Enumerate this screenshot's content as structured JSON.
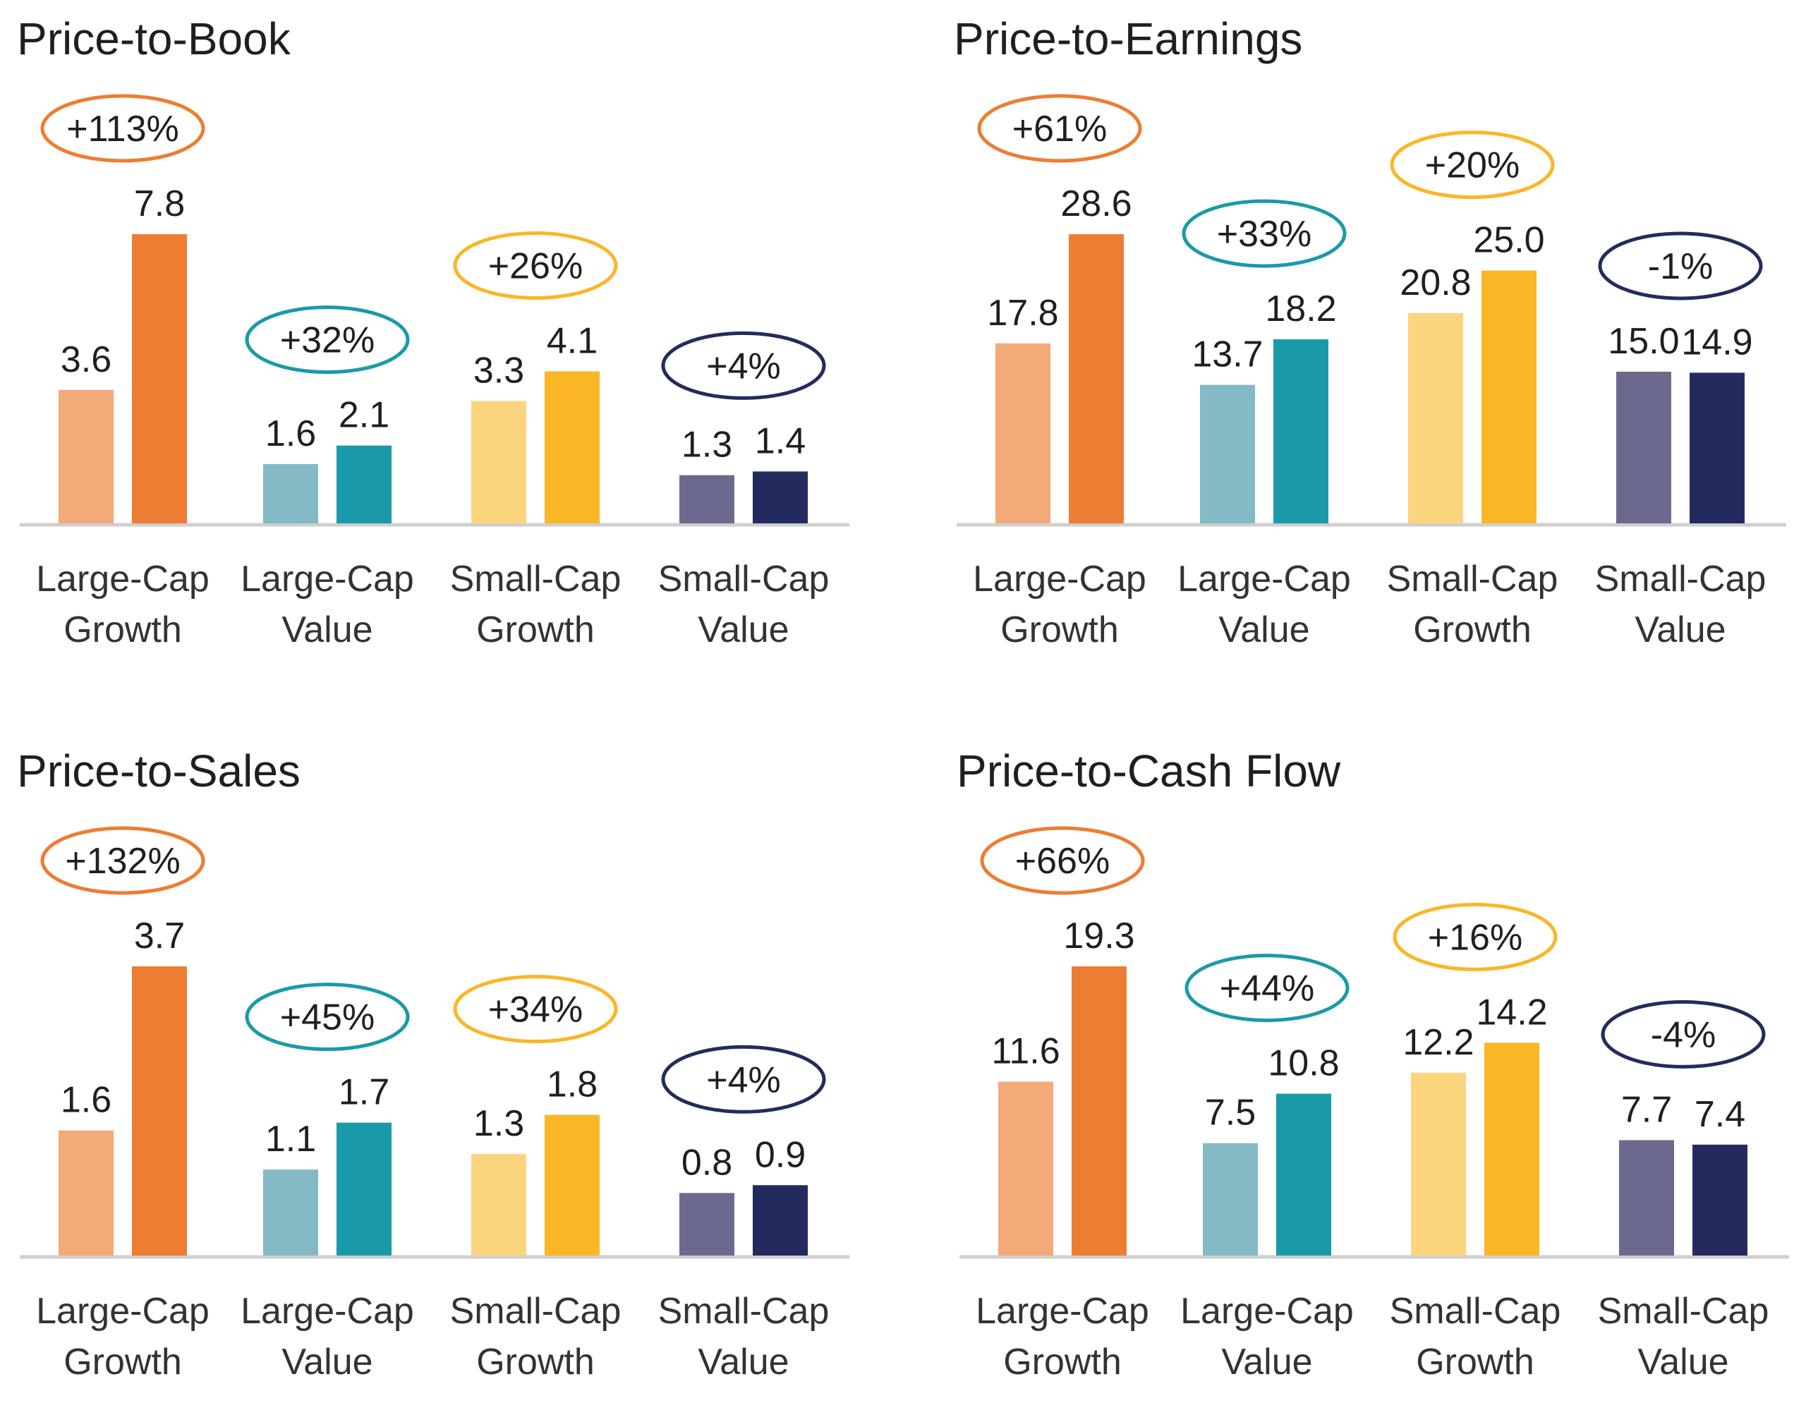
{
  "colors": {
    "lcg": [
      "#f4a978",
      "#ed7d32"
    ],
    "lcv": [
      "#84bac5",
      "#1a9aa8"
    ],
    "scg": [
      "#fdd47e",
      "#fbb626"
    ],
    "scv": [
      "#6b6a8e",
      "#232b5e"
    ],
    "baseline": "#cfcfcf"
  },
  "chart_data": [
    {
      "type": "bar",
      "title": "Price-to-Book",
      "categories": [
        [
          "Large-Cap",
          "Growth"
        ],
        [
          "Large-Cap",
          "Value"
        ],
        [
          "Small-Cap",
          "Growth"
        ],
        [
          "Small-Cap",
          "Value"
        ]
      ],
      "pairs": [
        [
          3.6,
          7.8
        ],
        [
          1.6,
          2.1
        ],
        [
          3.3,
          4.1
        ],
        [
          1.3,
          1.4
        ]
      ],
      "value_labels": [
        [
          "3.6",
          "7.8"
        ],
        [
          "1.6",
          "2.1"
        ],
        [
          "3.3",
          "4.1"
        ],
        [
          "1.3",
          "1.4"
        ]
      ],
      "changes": [
        "+113%",
        "+32%",
        "+26%",
        "+4%"
      ],
      "ylim": [
        0,
        7.8
      ]
    },
    {
      "type": "bar",
      "title": "Price-to-Earnings",
      "categories": [
        [
          "Large-Cap",
          "Growth"
        ],
        [
          "Large-Cap",
          "Value"
        ],
        [
          "Small-Cap",
          "Growth"
        ],
        [
          "Small-Cap",
          "Value"
        ]
      ],
      "pairs": [
        [
          17.8,
          28.6
        ],
        [
          13.7,
          18.2
        ],
        [
          20.8,
          25.0
        ],
        [
          15.0,
          14.9
        ]
      ],
      "value_labels": [
        [
          "17.8",
          "28.6"
        ],
        [
          "13.7",
          "18.2"
        ],
        [
          "20.8",
          "25.0"
        ],
        [
          "15.0",
          "14.9"
        ]
      ],
      "changes": [
        "+61%",
        "+33%",
        "+20%",
        "-1%"
      ],
      "ylim": [
        0,
        28.6
      ]
    },
    {
      "type": "bar",
      "title": "Price-to-Sales",
      "categories": [
        [
          "Large-Cap",
          "Growth"
        ],
        [
          "Large-Cap",
          "Value"
        ],
        [
          "Small-Cap",
          "Growth"
        ],
        [
          "Small-Cap",
          "Value"
        ]
      ],
      "pairs": [
        [
          1.6,
          3.7
        ],
        [
          1.1,
          1.7
        ],
        [
          1.3,
          1.8
        ],
        [
          0.8,
          0.9
        ]
      ],
      "value_labels": [
        [
          "1.6",
          "3.7"
        ],
        [
          "1.1",
          "1.7"
        ],
        [
          "1.3",
          "1.8"
        ],
        [
          "0.8",
          "0.9"
        ]
      ],
      "changes": [
        "+132%",
        "+45%",
        "+34%",
        "+4%"
      ],
      "ylim": [
        0,
        3.7
      ]
    },
    {
      "type": "bar",
      "title": "Price-to-Cash Flow",
      "categories": [
        [
          "Large-Cap",
          "Growth"
        ],
        [
          "Large-Cap",
          "Value"
        ],
        [
          "Small-Cap",
          "Growth"
        ],
        [
          "Small-Cap",
          "Value"
        ]
      ],
      "pairs": [
        [
          11.6,
          19.3
        ],
        [
          7.5,
          10.8
        ],
        [
          12.2,
          14.2
        ],
        [
          7.7,
          7.4
        ]
      ],
      "value_labels": [
        [
          "11.6",
          "19.3"
        ],
        [
          "7.5",
          "10.8"
        ],
        [
          "12.2",
          "14.2"
        ],
        [
          "7.7",
          "7.4"
        ]
      ],
      "changes": [
        "+66%",
        "+44%",
        "+16%",
        "-4%"
      ],
      "ylim": [
        0,
        19.3
      ]
    }
  ]
}
